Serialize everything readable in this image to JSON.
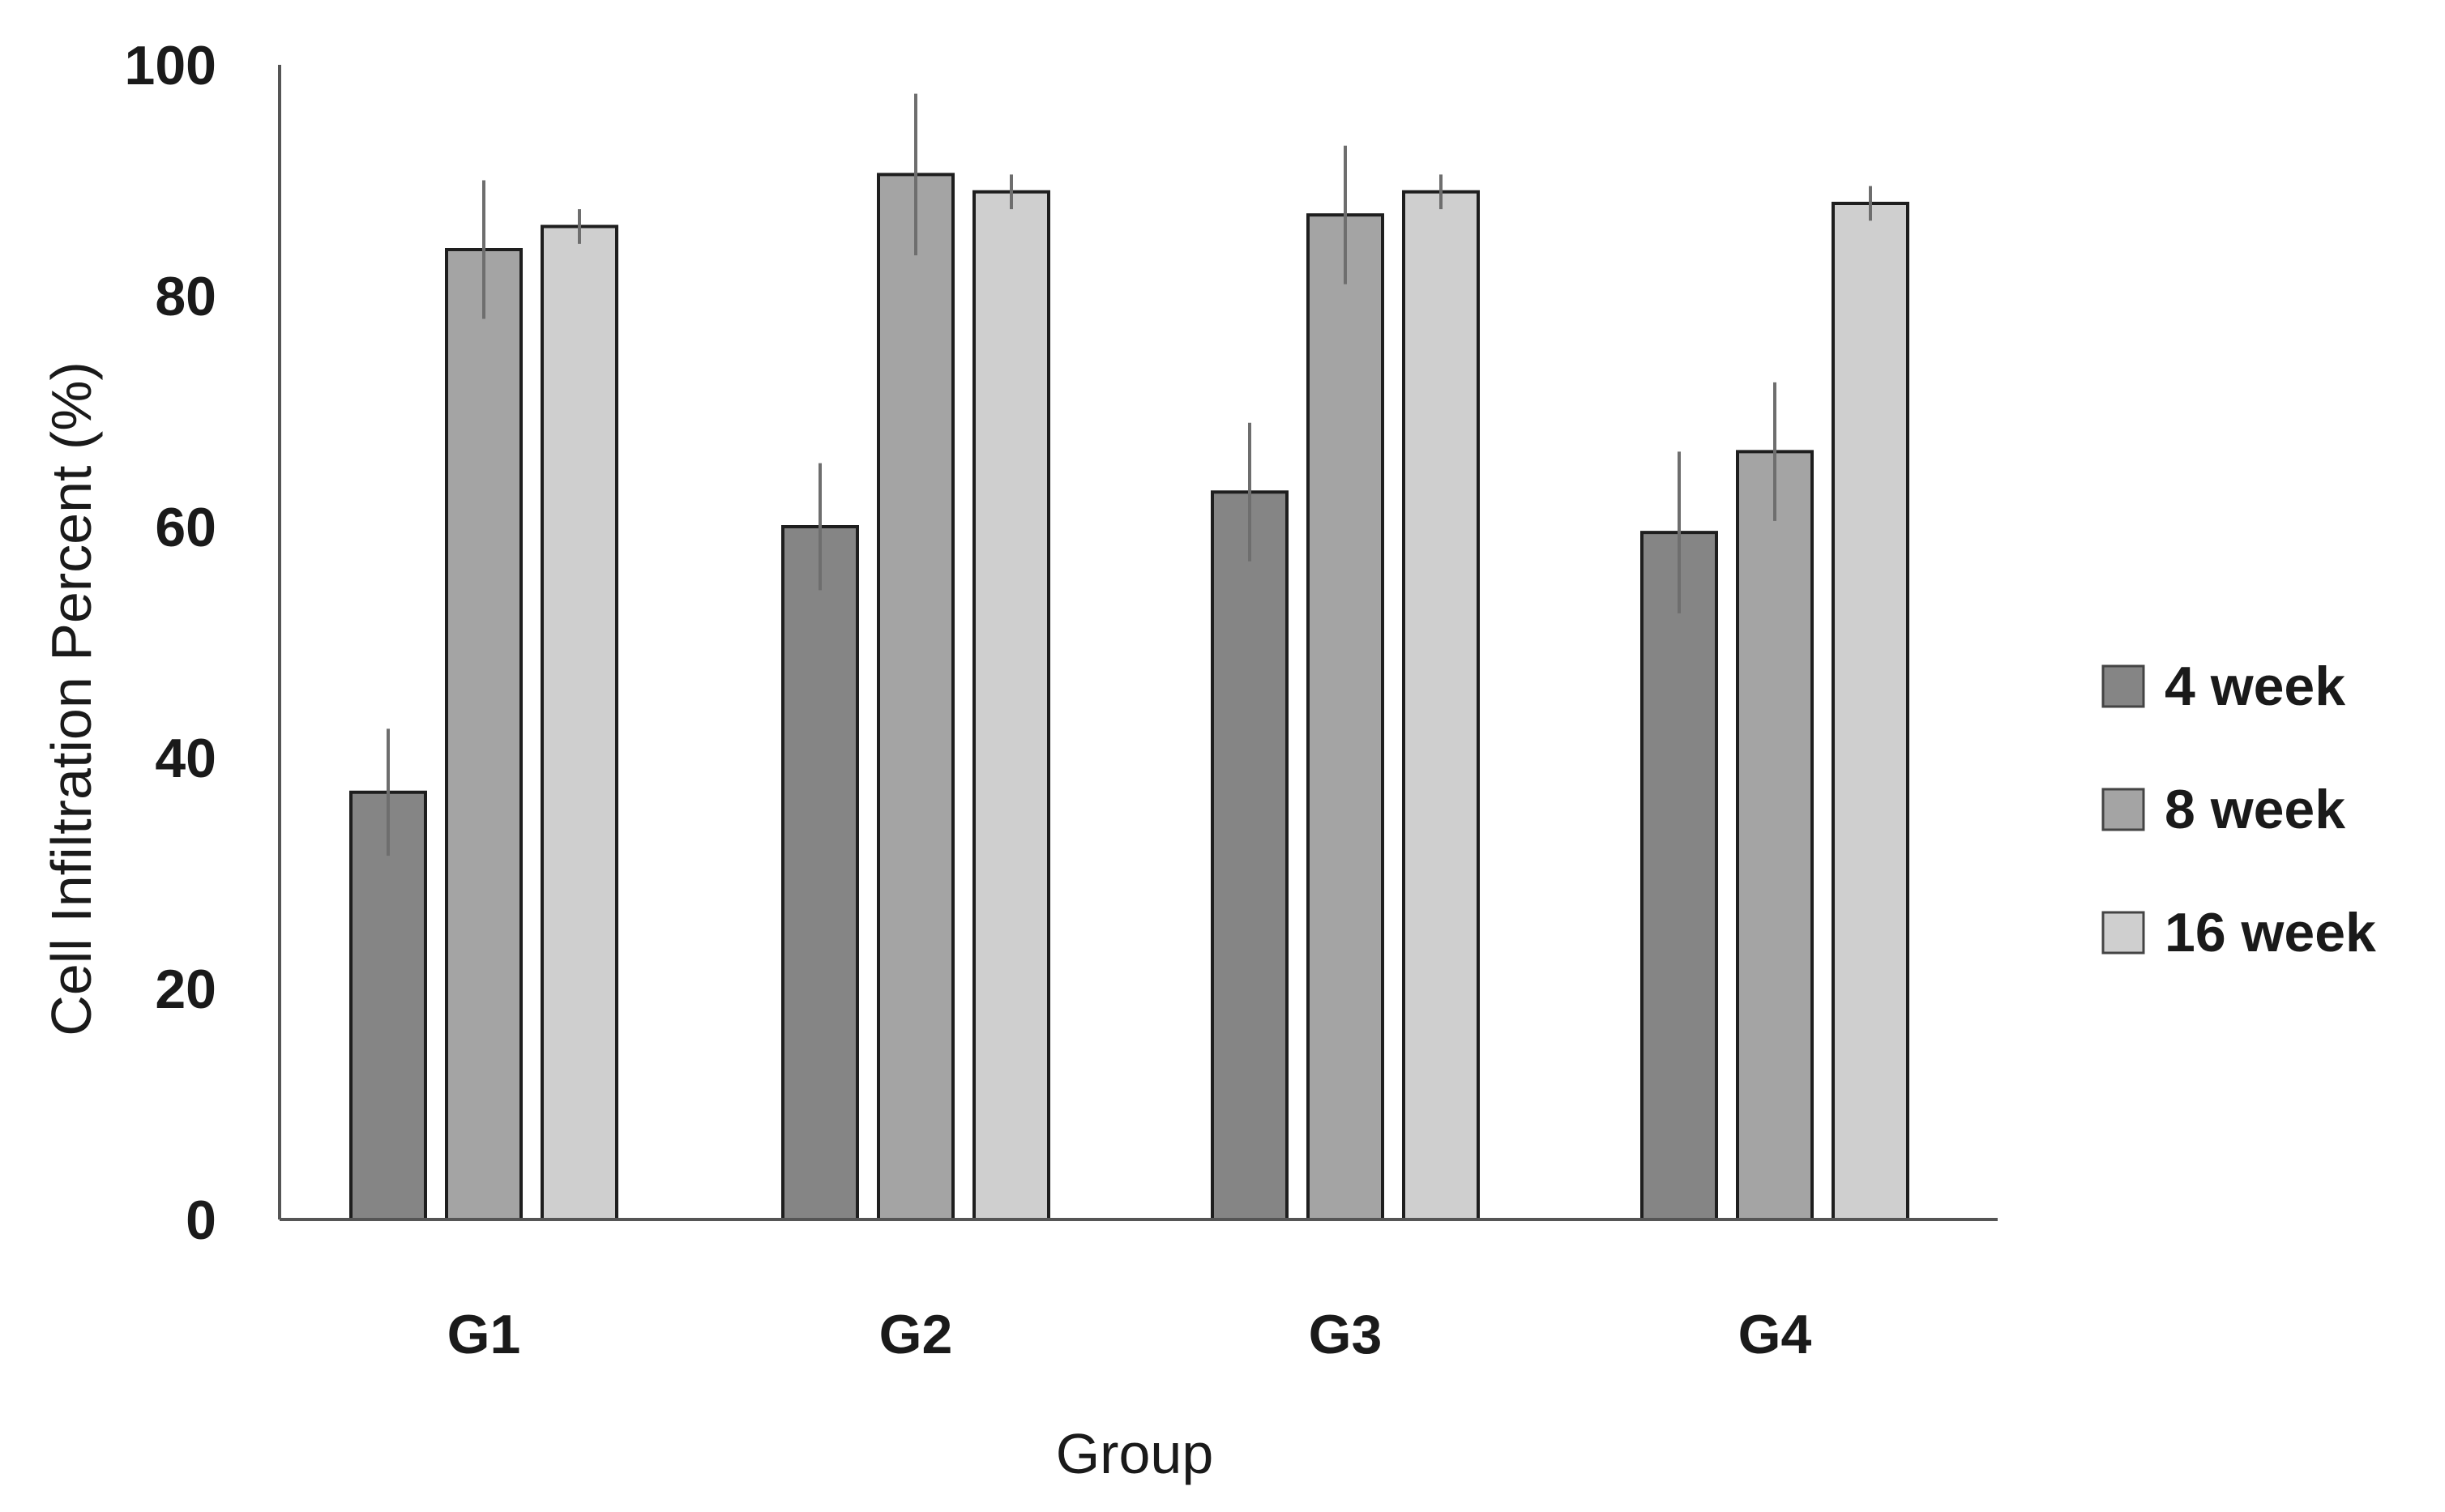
{
  "chart_data": {
    "type": "bar",
    "title": "",
    "xlabel": "Group",
    "ylabel": "Cell Infiltration Percent (%)",
    "categories": [
      "G1",
      "G2",
      "G3",
      "G4"
    ],
    "ylim": [
      0,
      100
    ],
    "yticks": [
      "0",
      "20",
      "40",
      "60",
      "80",
      "100"
    ],
    "grid": false,
    "legend_position": "right",
    "series": [
      {
        "name": "4 week",
        "color": "#858585",
        "values": [
          37,
          60,
          63,
          59.5
        ],
        "errors": [
          5.5,
          5.5,
          6,
          7
        ]
      },
      {
        "name": "8 week",
        "color": "#a4a4a4",
        "values": [
          84,
          90.5,
          87,
          66.5
        ],
        "errors": [
          6,
          7,
          6,
          6
        ]
      },
      {
        "name": "16 week",
        "color": "#cfcfcf",
        "values": [
          86,
          89,
          89,
          88
        ],
        "errors": [
          1.5,
          1.5,
          1.5,
          1.5
        ]
      }
    ]
  }
}
